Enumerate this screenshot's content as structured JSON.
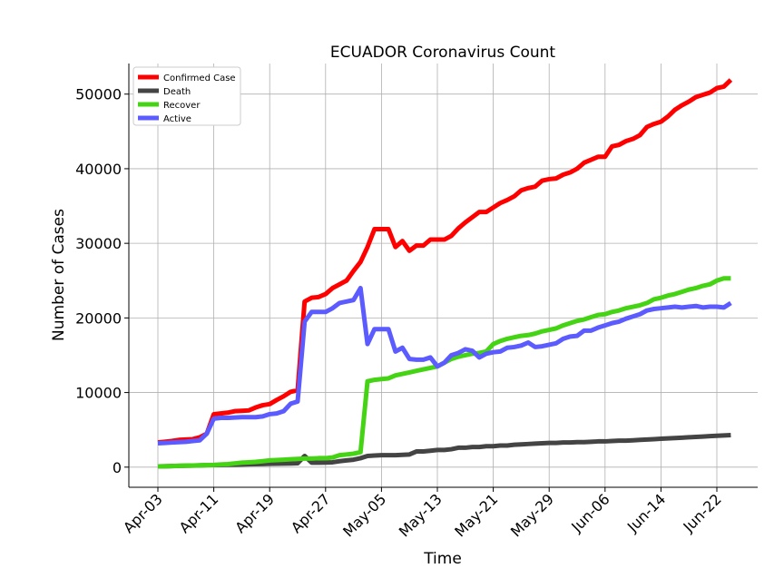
{
  "chart_data": {
    "type": "line",
    "title": "ECUADOR Coronavirus Count",
    "x_label": "Time",
    "y_label": "Number of Cases",
    "categories": [
      "Apr-03",
      null,
      null,
      null,
      null,
      null,
      null,
      null,
      "Apr-11",
      null,
      null,
      null,
      null,
      null,
      null,
      null,
      "Apr-19",
      null,
      null,
      null,
      null,
      null,
      null,
      null,
      "Apr-27",
      null,
      null,
      null,
      null,
      null,
      null,
      null,
      "May-05",
      null,
      null,
      null,
      null,
      null,
      null,
      null,
      "May-13",
      null,
      null,
      null,
      null,
      null,
      null,
      null,
      "May-21",
      null,
      null,
      null,
      null,
      null,
      null,
      null,
      "May-29",
      null,
      null,
      null,
      null,
      null,
      null,
      null,
      "Jun-06",
      null,
      null,
      null,
      null,
      null,
      null,
      null,
      "Jun-14",
      null,
      null,
      null,
      null,
      null,
      null,
      null,
      "Jun-22",
      null,
      null
    ],
    "series": [
      {
        "name": "Confirmed Case",
        "color": "#ff0000",
        "values": [
          3300,
          3400,
          3500,
          3650,
          3700,
          3750,
          4000,
          4500,
          7100,
          7200,
          7300,
          7500,
          7550,
          7600,
          8000,
          8300,
          8450,
          9000,
          9500,
          10100,
          10300,
          22200,
          22700,
          22800,
          23200,
          24000,
          24500,
          25000,
          26300,
          27500,
          29500,
          31900,
          31900,
          31900,
          29500,
          30300,
          29000,
          29700,
          29700,
          30500,
          30500,
          30500,
          31000,
          32000,
          32800,
          33500,
          34200,
          34200,
          34800,
          35400,
          35800,
          36300,
          37100,
          37400,
          37600,
          38400,
          38600,
          38700,
          39200,
          39500,
          40000,
          40800,
          41200,
          41600,
          41600,
          43000,
          43200,
          43700,
          44000,
          44500,
          45600,
          46000,
          46300,
          47000,
          47900,
          48500,
          49000,
          49600,
          49900,
          50200,
          50800,
          51000,
          51900
        ]
      },
      {
        "name": "Death",
        "color": "#444444",
        "values": [
          100,
          120,
          150,
          170,
          190,
          210,
          230,
          260,
          280,
          300,
          320,
          340,
          360,
          380,
          400,
          420,
          440,
          460,
          480,
          500,
          520,
          1500,
          600,
          600,
          620,
          650,
          800,
          900,
          1000,
          1200,
          1500,
          1550,
          1600,
          1600,
          1600,
          1650,
          1700,
          2100,
          2100,
          2200,
          2300,
          2300,
          2400,
          2600,
          2600,
          2700,
          2700,
          2800,
          2800,
          2900,
          2900,
          3000,
          3050,
          3100,
          3150,
          3200,
          3250,
          3250,
          3300,
          3300,
          3350,
          3350,
          3400,
          3450,
          3450,
          3500,
          3550,
          3550,
          3600,
          3650,
          3700,
          3750,
          3800,
          3850,
          3900,
          3950,
          4000,
          4050,
          4100,
          4150,
          4200,
          4250,
          4300
        ]
      },
      {
        "name": "Recover",
        "color": "#44d414",
        "values": [
          100,
          120,
          150,
          170,
          200,
          220,
          250,
          280,
          300,
          350,
          400,
          500,
          600,
          650,
          700,
          800,
          900,
          950,
          1000,
          1050,
          1100,
          1150,
          1150,
          1200,
          1200,
          1300,
          1600,
          1700,
          1800,
          2000,
          11500,
          11700,
          11800,
          11900,
          12300,
          12500,
          12700,
          12900,
          13100,
          13300,
          13500,
          14000,
          14500,
          14800,
          15000,
          15200,
          15300,
          15500,
          16500,
          16900,
          17200,
          17400,
          17600,
          17700,
          17900,
          18200,
          18400,
          18600,
          19000,
          19300,
          19600,
          19800,
          20100,
          20400,
          20500,
          20800,
          21000,
          21300,
          21500,
          21700,
          22000,
          22500,
          22700,
          23000,
          23200,
          23500,
          23800,
          24000,
          24300,
          24500,
          25000,
          25300,
          25300
        ]
      },
      {
        "name": "Active",
        "color": "#5b5bff",
        "values": [
          3200,
          3250,
          3300,
          3350,
          3400,
          3500,
          3600,
          4500,
          6500,
          6600,
          6600,
          6650,
          6700,
          6700,
          6700,
          6800,
          7100,
          7200,
          7500,
          8500,
          8800,
          19500,
          20800,
          20800,
          20800,
          21300,
          22000,
          22200,
          22400,
          24000,
          16500,
          18500,
          18500,
          18500,
          15500,
          16000,
          14500,
          14400,
          14400,
          14700,
          13500,
          14000,
          15000,
          15300,
          15800,
          15600,
          14700,
          15200,
          15400,
          15500,
          16000,
          16100,
          16300,
          16700,
          16100,
          16200,
          16400,
          16600,
          17200,
          17500,
          17600,
          18300,
          18300,
          18700,
          19000,
          19300,
          19500,
          19900,
          20200,
          20500,
          21000,
          21200,
          21300,
          21400,
          21500,
          21400,
          21500,
          21600,
          21400,
          21500,
          21500,
          21400,
          22000
        ]
      }
    ],
    "ylim": [
      -2700,
      54100
    ],
    "yticks": [
      0,
      10000,
      20000,
      30000,
      40000,
      50000
    ],
    "grid": true,
    "legend": "upper left"
  }
}
